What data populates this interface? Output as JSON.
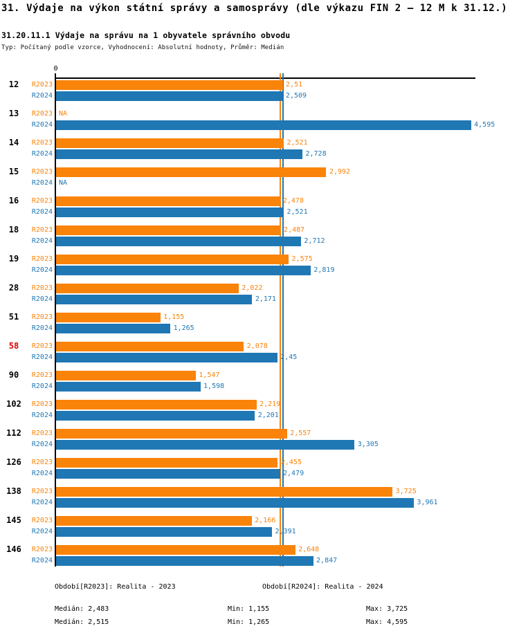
{
  "title": "31. Výdaje na výkon státní správy a samosprávy (dle výkazu FIN 2 – 12 M k 31.12.)",
  "subtitle": "31.20.11.1 Výdaje na správu na 1 obyvatele správního obvodu",
  "meta": "Typ: Počítaný podle vzorce, Vyhodnocení: Absolutní hodnoty, Průměr: Medián",
  "colors": {
    "r2023": "#FA830A",
    "r2024": "#1F77B4",
    "highlight_id": "#DD0000",
    "axis": "#000000",
    "group_id": "#000000"
  },
  "chart_data": {
    "type": "bar",
    "orientation": "horizontal",
    "x_axis": {
      "zero_label": "0",
      "range_estimate": [
        0,
        4.65
      ],
      "grid": false
    },
    "na_text": "NA",
    "series": [
      {
        "key": "r2023",
        "label": "R2023",
        "color": "#FA830A",
        "median": 2.483,
        "median_display": "2,483"
      },
      {
        "key": "r2024",
        "label": "R2024",
        "color": "#1F77B4",
        "median": 2.515,
        "median_display": "2,515"
      }
    ],
    "groups": [
      {
        "id": "12",
        "highlight": false,
        "values": [
          {
            "display": "2,51",
            "value": 2.51
          },
          {
            "display": "2,509",
            "value": 2.509
          }
        ]
      },
      {
        "id": "13",
        "highlight": false,
        "values": [
          {
            "display": "NA",
            "value": null
          },
          {
            "display": "4,595",
            "value": 4.595
          }
        ]
      },
      {
        "id": "14",
        "highlight": false,
        "values": [
          {
            "display": "2,521",
            "value": 2.521
          },
          {
            "display": "2,728",
            "value": 2.728
          }
        ]
      },
      {
        "id": "15",
        "highlight": false,
        "values": [
          {
            "display": "2,992",
            "value": 2.992
          },
          {
            "display": "NA",
            "value": null
          }
        ]
      },
      {
        "id": "16",
        "highlight": false,
        "values": [
          {
            "display": "2,478",
            "value": 2.478
          },
          {
            "display": "2,521",
            "value": 2.521
          }
        ]
      },
      {
        "id": "18",
        "highlight": false,
        "values": [
          {
            "display": "2,487",
            "value": 2.487
          },
          {
            "display": "2,712",
            "value": 2.712
          }
        ]
      },
      {
        "id": "19",
        "highlight": false,
        "values": [
          {
            "display": "2,575",
            "value": 2.575
          },
          {
            "display": "2,819",
            "value": 2.819
          }
        ]
      },
      {
        "id": "28",
        "highlight": false,
        "values": [
          {
            "display": "2,022",
            "value": 2.022
          },
          {
            "display": "2,171",
            "value": 2.171
          }
        ]
      },
      {
        "id": "51",
        "highlight": false,
        "values": [
          {
            "display": "1,155",
            "value": 1.155
          },
          {
            "display": "1,265",
            "value": 1.265
          }
        ]
      },
      {
        "id": "58",
        "highlight": true,
        "values": [
          {
            "display": "2,078",
            "value": 2.078
          },
          {
            "display": "2,45",
            "value": 2.45
          }
        ]
      },
      {
        "id": "90",
        "highlight": false,
        "values": [
          {
            "display": "1,547",
            "value": 1.547
          },
          {
            "display": "1,598",
            "value": 1.598
          }
        ]
      },
      {
        "id": "102",
        "highlight": false,
        "values": [
          {
            "display": "2,219",
            "value": 2.219
          },
          {
            "display": "2,201",
            "value": 2.201
          }
        ]
      },
      {
        "id": "112",
        "highlight": false,
        "values": [
          {
            "display": "2,557",
            "value": 2.557
          },
          {
            "display": "3,305",
            "value": 3.305
          }
        ]
      },
      {
        "id": "126",
        "highlight": false,
        "values": [
          {
            "display": "2,455",
            "value": 2.455
          },
          {
            "display": "2,479",
            "value": 2.479
          }
        ]
      },
      {
        "id": "138",
        "highlight": false,
        "values": [
          {
            "display": "3,725",
            "value": 3.725
          },
          {
            "display": "3,961",
            "value": 3.961
          }
        ]
      },
      {
        "id": "145",
        "highlight": false,
        "values": [
          {
            "display": "2,166",
            "value": 2.166
          },
          {
            "display": "2,391",
            "value": 2.391
          }
        ]
      },
      {
        "id": "146",
        "highlight": false,
        "values": [
          {
            "display": "2,648",
            "value": 2.648
          },
          {
            "display": "2,847",
            "value": 2.847
          }
        ]
      }
    ]
  },
  "legend": {
    "r2023": "Období[R2023]: Realita - 2023",
    "r2024": "Období[R2024]: Realita - 2024"
  },
  "stats": {
    "r2023": {
      "median": "Medián: 2,483",
      "min": "Min: 1,155",
      "max": "Max: 3,725"
    },
    "r2024": {
      "median": "Medián: 2,515",
      "min": "Min: 1,265",
      "max": "Max: 4,595"
    }
  }
}
